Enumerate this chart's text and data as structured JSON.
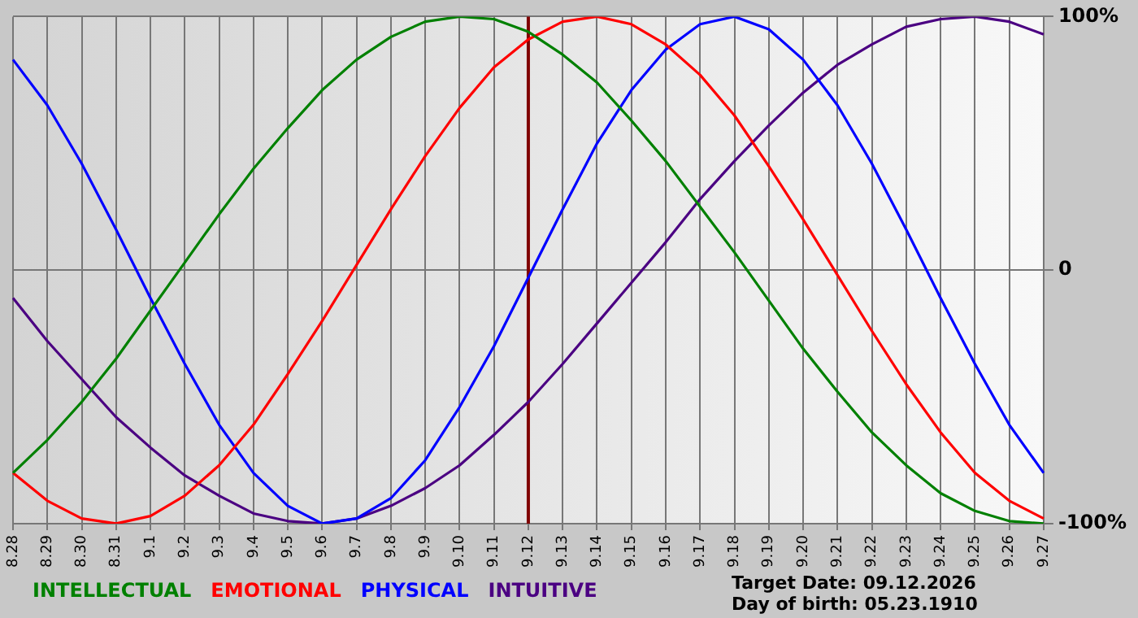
{
  "chart_data": {
    "type": "line",
    "categories": [
      "8.28",
      "8.29",
      "8.30",
      "8.31",
      "9.1",
      "9.2",
      "9.3",
      "9.4",
      "9.5",
      "9.6",
      "9.7",
      "9.8",
      "9.9",
      "9.10",
      "9.11",
      "9.12",
      "9.13",
      "9.14",
      "9.15",
      "9.16",
      "9.17",
      "9.18",
      "9.19",
      "9.20",
      "9.21",
      "9.22",
      "9.23",
      "9.24",
      "9.25",
      "9.26",
      "9.27"
    ],
    "series": [
      {
        "name": "INTELLECTUAL",
        "color": "#008000",
        "values": [
          -80,
          -67,
          -52,
          -35,
          -16,
          3,
          22,
          40,
          56,
          71,
          83,
          92,
          98,
          100,
          99,
          94,
          85,
          74,
          59,
          43,
          25,
          7,
          -12,
          -31,
          -48,
          -64,
          -77,
          -88,
          -95,
          -99,
          -100
        ]
      },
      {
        "name": "EMOTIONAL",
        "color": "#ff0000",
        "values": [
          -80,
          -91,
          -98,
          -100,
          -97,
          -89,
          -77,
          -61,
          -41,
          -20,
          2,
          24,
          45,
          64,
          80,
          91,
          98,
          100,
          97,
          89,
          77,
          61,
          41,
          20,
          -2,
          -24,
          -45,
          -64,
          -80,
          -91,
          -98
        ]
      },
      {
        "name": "PHYSICAL",
        "color": "#0000ff",
        "values": [
          83,
          65,
          42,
          16,
          -11,
          -37,
          -61,
          -80,
          -93,
          -100,
          -98,
          -90,
          -75,
          -54,
          -30,
          -3,
          24,
          50,
          71,
          87,
          97,
          100,
          95,
          83,
          65,
          42,
          16,
          -11,
          -37,
          -61,
          -80
        ]
      },
      {
        "name": "INTUITIVE",
        "color": "#4b0082",
        "values": [
          -11,
          -28,
          -43,
          -58,
          -70,
          -81,
          -89,
          -96,
          -99,
          -100,
          -98,
          -93,
          -86,
          -77,
          -65,
          -52,
          -37,
          -21,
          -5,
          11,
          28,
          43,
          57,
          70,
          81,
          89,
          96,
          99,
          100,
          98,
          93
        ]
      }
    ],
    "ylim": [
      -100,
      100
    ],
    "yticks": [
      {
        "value": 100,
        "label": "100%"
      },
      0,
      {
        "value": -100,
        "label": "-100%"
      }
    ],
    "grid": true,
    "legend": "bottom left",
    "marker": "none",
    "line_style": "solid",
    "ref_lines": [
      {
        "axis": "x",
        "value": "9.12",
        "color": "#800000"
      }
    ],
    "annotations": [
      "Target Date: 09.12.2026",
      "Day of birth: 05.23.1910"
    ]
  }
}
